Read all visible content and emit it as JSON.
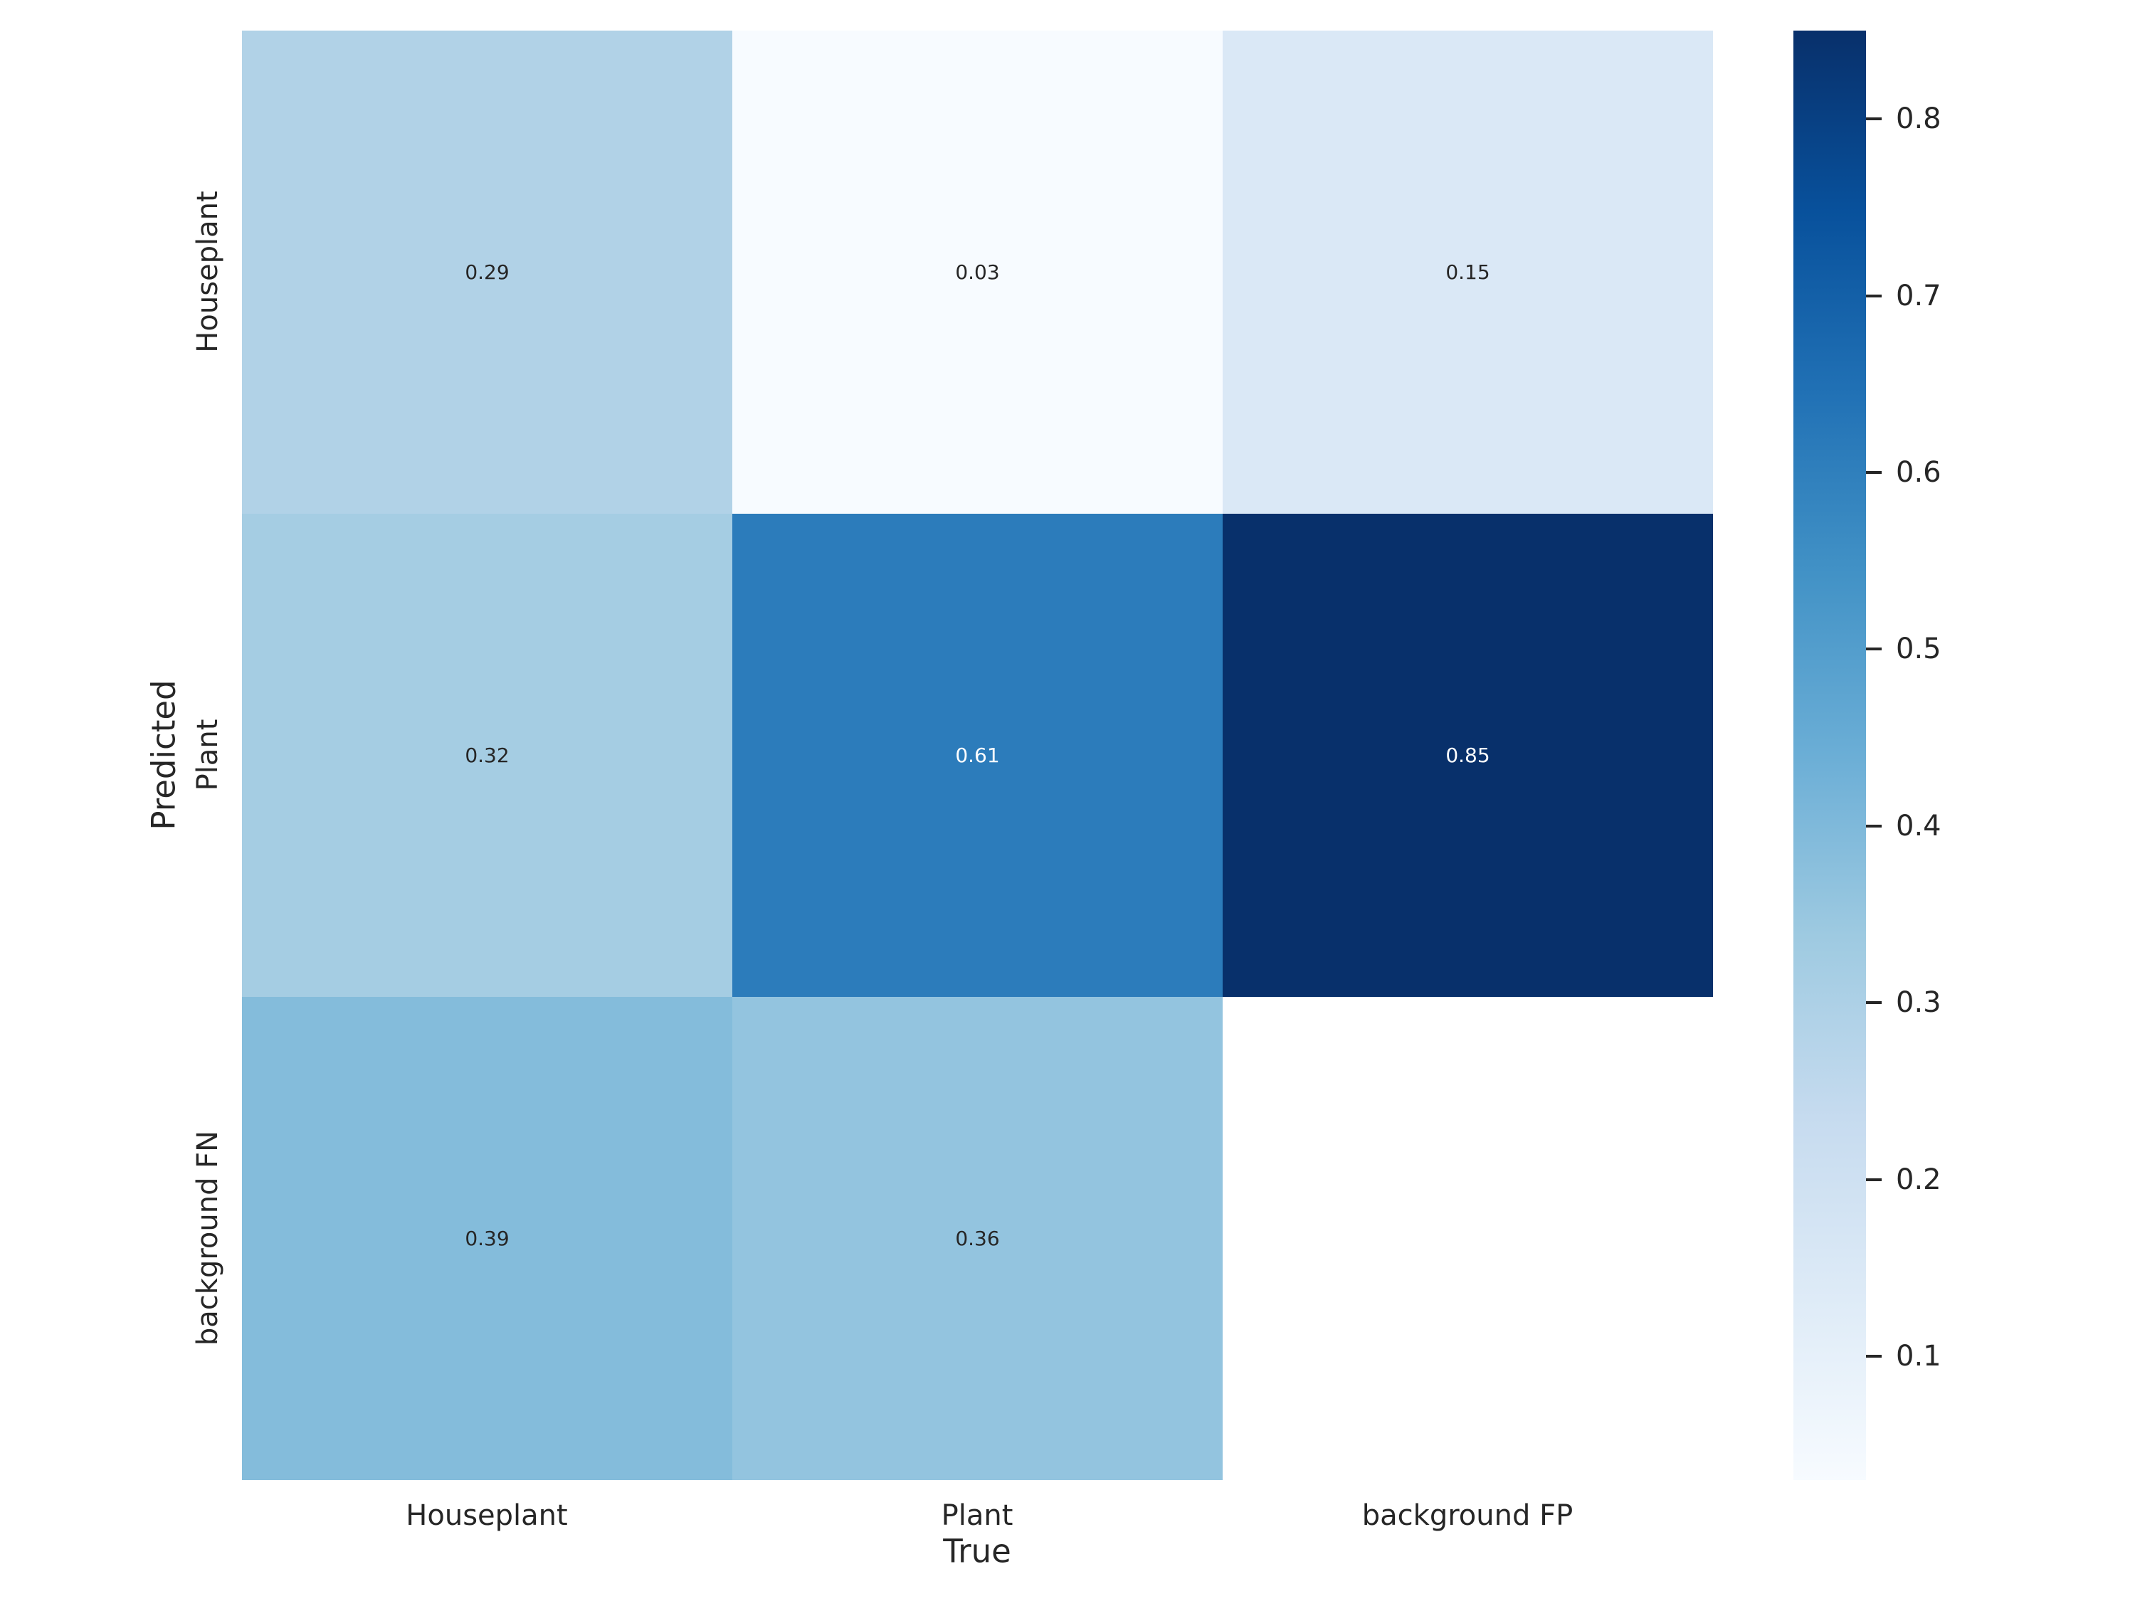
{
  "figure": {
    "background_color": "#ffffff",
    "text_color": "#262626"
  },
  "chart_data": {
    "type": "heatmap",
    "xlabel": "True",
    "ylabel": "Predicted",
    "x_categories": [
      "Houseplant",
      "Plant",
      "background FP"
    ],
    "y_categories": [
      "Houseplant",
      "Plant",
      "background FN"
    ],
    "matrix": [
      [
        0.29,
        0.03,
        0.15
      ],
      [
        0.32,
        0.61,
        0.85
      ],
      [
        0.39,
        0.36,
        null
      ]
    ],
    "annotations": [
      [
        "0.29",
        "0.03",
        "0.15"
      ],
      [
        "0.32",
        "0.61",
        "0.85"
      ],
      [
        "0.39",
        "0.36",
        ""
      ]
    ],
    "colormap": "Blues",
    "colormap_anchors": [
      "#f7fbff",
      "#deebf7",
      "#c6dbef",
      "#9ecae1",
      "#6baed6",
      "#4292c6",
      "#2171b5",
      "#08519c",
      "#08306b"
    ],
    "vmin": 0.03,
    "vmax": 0.85,
    "colorbar_ticks": [
      "0.1",
      "0.2",
      "0.3",
      "0.4",
      "0.5",
      "0.6",
      "0.7",
      "0.8"
    ],
    "masked_cell_color": "#ffffff",
    "annotation_color_on_light": "#262626",
    "annotation_color_on_dark": "#ffffff",
    "grid": false,
    "legend_position": "colorbar-right"
  }
}
